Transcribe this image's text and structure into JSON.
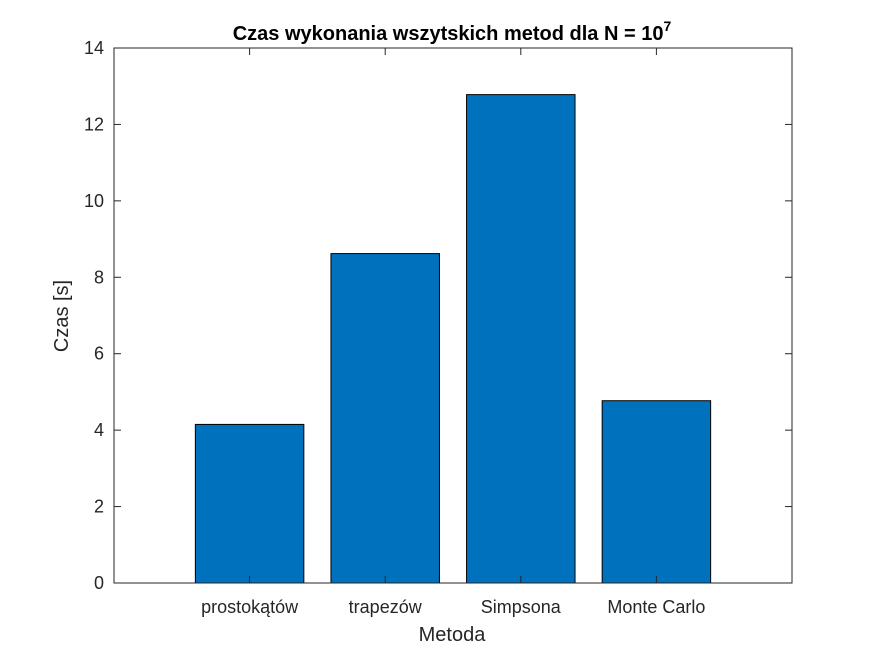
{
  "chart_data": {
    "type": "bar",
    "title": "Czas wykonania wszytskich metod dla N = 10",
    "title_exponent": "7",
    "xlabel": "Metoda",
    "ylabel": "Czas [s]",
    "categories": [
      "prostokątów",
      "trapezów",
      "Simpsona",
      "Monte Carlo"
    ],
    "values": [
      4.15,
      8.62,
      12.78,
      4.77
    ],
    "ylim": [
      0,
      14
    ],
    "yticks": [
      "0",
      "2",
      "4",
      "6",
      "8",
      "10",
      "12",
      "14"
    ],
    "grid": false,
    "bar_color": "#0072BD"
  }
}
